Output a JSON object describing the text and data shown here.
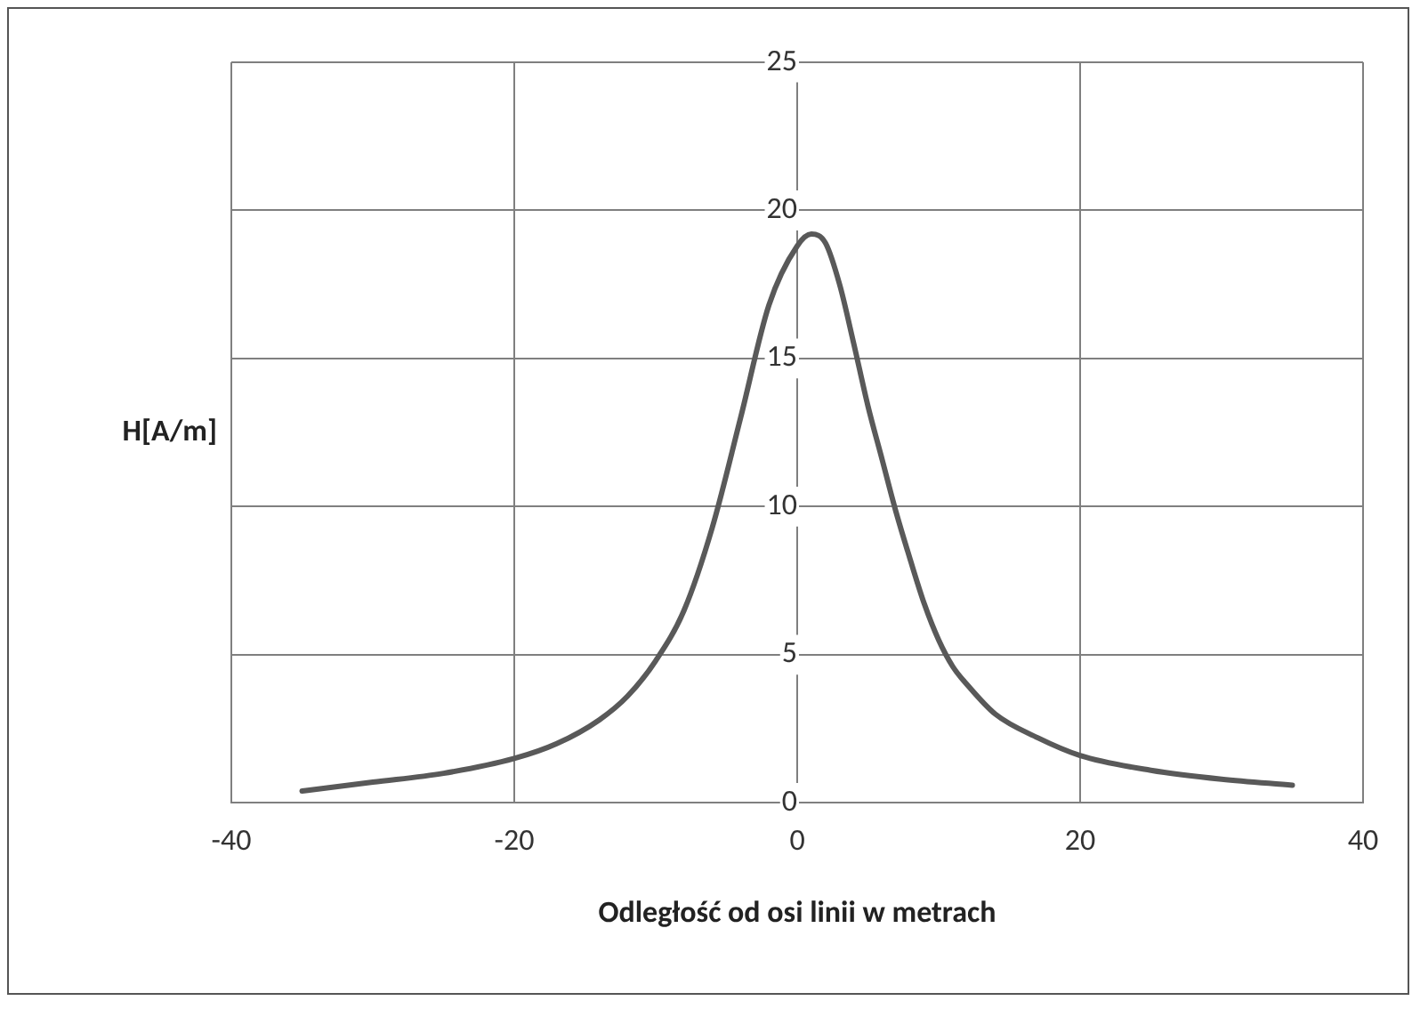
{
  "chart_data": {
    "type": "line",
    "xlabel": "Odległość od osi linii w metrach",
    "ylabel": "H[A/m]",
    "x": [
      -35,
      -30,
      -25,
      -20,
      -17,
      -14,
      -12,
      -10,
      -8,
      -6,
      -4,
      -2,
      0,
      1,
      2,
      3,
      4,
      5,
      6,
      7,
      8,
      9,
      10,
      11,
      12,
      14,
      17,
      20,
      25,
      30,
      35
    ],
    "series": [
      {
        "color": "#595959",
        "values": [
          0.4,
          0.7,
          1.0,
          1.5,
          2.0,
          2.8,
          3.6,
          4.8,
          6.5,
          9.3,
          13,
          16.8,
          18.8,
          19.2,
          18.9,
          17.5,
          15.5,
          13.4,
          11.6,
          9.8,
          8.2,
          6.7,
          5.5,
          4.6,
          4.0,
          3.0,
          2.2,
          1.6,
          1.1,
          0.8,
          0.6
        ]
      }
    ],
    "xlim": [
      -40,
      40
    ],
    "xticks": [
      -40,
      -20,
      0,
      20,
      40
    ],
    "ylim": [
      0,
      25
    ],
    "yticks": [
      0,
      5,
      10,
      15,
      20,
      25
    ],
    "grid": true,
    "legend": false,
    "marker": "none",
    "line_style": "solid"
  }
}
